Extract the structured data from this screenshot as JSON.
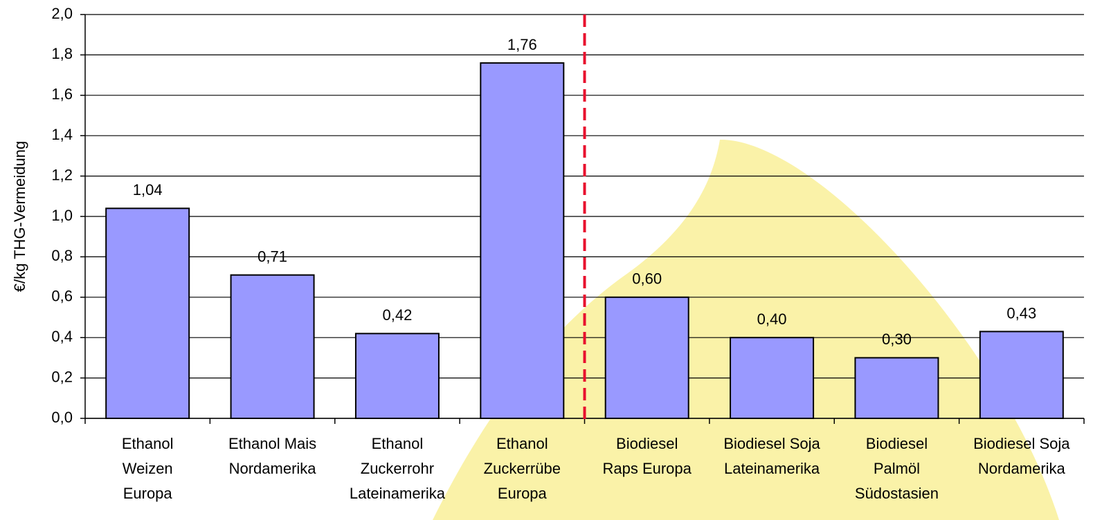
{
  "chart_data": {
    "type": "bar",
    "y_label": "€/kg THG-Vermeidung",
    "categories": [
      "Ethanol\nWeizen\nEuropa",
      "Ethanol Mais\nNordamerika",
      "Ethanol\nZuckerrohr\nLateinamerika",
      "Ethanol\nZuckerrübe\nEuropa",
      "Biodiesel\nRaps Europa",
      "Biodiesel Soja\nLateinamerika",
      "Biodiesel\nPalmöl\nSüdostasien",
      "Biodiesel Soja\nNordamerika"
    ],
    "values": [
      1.04,
      0.71,
      0.42,
      1.76,
      0.6,
      0.4,
      0.3,
      0.43
    ],
    "value_labels": [
      "1,04",
      "0,71",
      "0,42",
      "1,76",
      "0,60",
      "0,40",
      "0,30",
      "0,43"
    ],
    "color": "#9999ff",
    "ylim": [
      0,
      2.0
    ],
    "yticks": [
      {
        "value": 0,
        "label": "0,0"
      },
      {
        "value": 0.2,
        "label": "0,2"
      },
      {
        "value": 0.4,
        "label": "0,4"
      },
      {
        "value": 0.6,
        "label": "0,6"
      },
      {
        "value": 0.8,
        "label": "0,8"
      },
      {
        "value": 1.0,
        "label": "1,0"
      },
      {
        "value": 1.2,
        "label": "1,2"
      },
      {
        "value": 1.4,
        "label": "1,4"
      },
      {
        "value": 1.6,
        "label": "1,6"
      },
      {
        "value": 1.8,
        "label": "1,8"
      },
      {
        "value": 2.0,
        "label": "2,0"
      }
    ],
    "grid": true
  }
}
